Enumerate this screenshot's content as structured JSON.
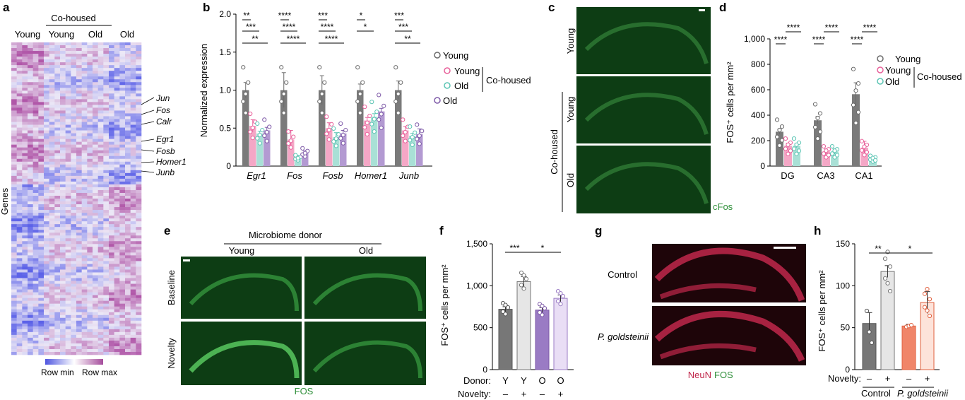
{
  "panels": {
    "a": "a",
    "b": "b",
    "c": "c",
    "d": "d",
    "e": "e",
    "f": "f",
    "g": "g",
    "h": "h"
  },
  "colors": {
    "young": "#6b6b6b",
    "young_cohoused": "#e8609a",
    "old_cohoused": "#5cc5b4",
    "old": "#7e5aa8",
    "heat_low": "#6a6ee0",
    "heat_high": "#b05aa6",
    "fos_green": "#2f8f3a",
    "neun_red": "#c0284b",
    "f_old": "#9a7bc4",
    "f_old_light": "#e9def5",
    "h_control": "#777777",
    "h_pg": "#f08569",
    "h_pg_light": "#fde3da"
  },
  "panel_a": {
    "cohoused_header": "Co-housed",
    "columns": [
      "Young",
      "Young",
      "Old",
      "Old"
    ],
    "ylabel": "Genes",
    "genes": [
      "Jun",
      "Fos",
      "Calr",
      "Egr1",
      "Fosb",
      "Homer1",
      "Junb"
    ],
    "legend_min": "Row min",
    "legend_max": "Row max"
  },
  "panel_c": {
    "labels": [
      "Young",
      "Young",
      "Old"
    ],
    "cohoused": "Co-housed",
    "stain": "cFos"
  },
  "panel_e": {
    "header": "Microbiome donor",
    "cols": [
      "Young",
      "Old"
    ],
    "rows": [
      "Baseline",
      "Novelty"
    ],
    "stain": "FOS"
  },
  "panel_g": {
    "rows": [
      "Control",
      "P. goldsteinii"
    ],
    "stain_red": "NeuN",
    "stain_green": "FOS"
  },
  "chart_data": [
    {
      "id": "b",
      "type": "bar",
      "title": "",
      "ylabel": "Normalized expression",
      "ylim": [
        0,
        2.0
      ],
      "yticks": [
        "0",
        "0.5",
        "1.0",
        "1.5",
        "2.0"
      ],
      "categories": [
        "Egr1",
        "Fos",
        "Fosb",
        "Homer1",
        "Junb"
      ],
      "series": [
        {
          "name": "Young",
          "values": [
            1.0,
            1.0,
            1.0,
            1.0,
            1.0
          ],
          "errors": [
            0.1,
            0.23,
            0.19,
            0.08,
            0.12
          ]
        },
        {
          "name": "Young (Co-housed)",
          "values": [
            0.53,
            0.35,
            0.5,
            0.6,
            0.47
          ],
          "errors": [
            0.08,
            0.12,
            0.07,
            0.04,
            0.05
          ]
        },
        {
          "name": "Old (Co-housed)",
          "values": [
            0.43,
            0.11,
            0.38,
            0.65,
            0.4
          ],
          "errors": [
            0.03,
            0.03,
            0.06,
            0.04,
            0.03
          ]
        },
        {
          "name": "Old",
          "values": [
            0.47,
            0.18,
            0.43,
            0.72,
            0.42
          ],
          "errors": [
            0.04,
            0.02,
            0.04,
            0.04,
            0.07
          ]
        }
      ],
      "significance": [
        [
          "**",
          "***",
          "**"
        ],
        [
          "****",
          "****",
          "****"
        ],
        [
          "***",
          "****",
          "****"
        ],
        [
          "*",
          "*"
        ],
        [
          "***",
          "***",
          "**"
        ]
      ],
      "legend": [
        "Young",
        "Young",
        "Old",
        "Old"
      ],
      "legend_group": "Co-housed"
    },
    {
      "id": "d",
      "type": "bar",
      "ylabel": "FOS⁺ cells per mm²",
      "ylim": [
        0,
        1000
      ],
      "yticks": [
        "0",
        "200",
        "400",
        "600",
        "800",
        "1,000"
      ],
      "categories": [
        "DG",
        "CA3",
        "CA1"
      ],
      "series": [
        {
          "name": "Young",
          "values": [
            270,
            360,
            565
          ],
          "errors": [
            20,
            30,
            90
          ]
        },
        {
          "name": "Young (Co-housed)",
          "values": [
            160,
            115,
            145
          ],
          "errors": [
            20,
            20,
            50
          ]
        },
        {
          "name": "Old (Co-housed)",
          "values": [
            160,
            115,
            60
          ],
          "errors": [
            15,
            20,
            15
          ]
        }
      ],
      "significance": [
        [
          "****",
          "****"
        ],
        [
          "****",
          "****"
        ],
        [
          "****",
          "****"
        ]
      ],
      "legend": [
        "Young",
        "Young",
        "Old"
      ],
      "legend_group": "Co-housed"
    },
    {
      "id": "f",
      "type": "bar",
      "ylabel": "FOS⁺ cells per mm²",
      "ylim": [
        0,
        1500
      ],
      "yticks": [
        "0",
        "500",
        "1,000",
        "1,500"
      ],
      "row_labels": [
        "Donor:",
        "Novelty:"
      ],
      "donor": [
        "Y",
        "Y",
        "O",
        "O"
      ],
      "novelty": [
        "–",
        "+",
        "–",
        "+"
      ],
      "values": [
        720,
        1050,
        710,
        850
      ],
      "errors": [
        30,
        60,
        30,
        40
      ],
      "significance": [
        "***",
        "*"
      ]
    },
    {
      "id": "h",
      "type": "bar",
      "ylabel": "FOS⁺ cells per mm²",
      "ylim": [
        0,
        150
      ],
      "yticks": [
        "0",
        "50",
        "100",
        "150"
      ],
      "row_label": "Novelty:",
      "novelty": [
        "–",
        "+",
        "–",
        "+"
      ],
      "groups": [
        "Control",
        "P. goldsteinii"
      ],
      "values": [
        55,
        117,
        52,
        80
      ],
      "errors": [
        13,
        7,
        2,
        13
      ],
      "significance": [
        "**",
        "*"
      ]
    }
  ]
}
